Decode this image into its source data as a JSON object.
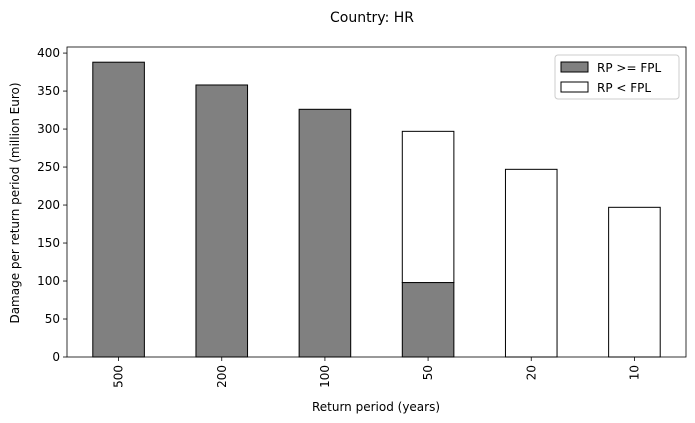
{
  "chart_data": {
    "type": "bar",
    "stacked": true,
    "title": "Country: HR",
    "xlabel": "Return period (years)",
    "ylabel": "Damage per return period (million Euro)",
    "categories": [
      "500",
      "200",
      "100",
      "50",
      "20",
      "10"
    ],
    "series": [
      {
        "name": "RP >= FPL",
        "color": "#808080",
        "values": [
          388,
          358,
          326,
          98,
          0,
          0
        ]
      },
      {
        "name": "RP < FPL",
        "color": "#ffffff",
        "values": [
          0,
          0,
          0,
          199,
          247,
          197
        ]
      }
    ],
    "ylim": [
      0,
      408
    ],
    "yticks": [
      0,
      50,
      100,
      150,
      200,
      250,
      300,
      350,
      400
    ],
    "grid": false,
    "legend": "top-right",
    "edge_color": "#000000"
  }
}
